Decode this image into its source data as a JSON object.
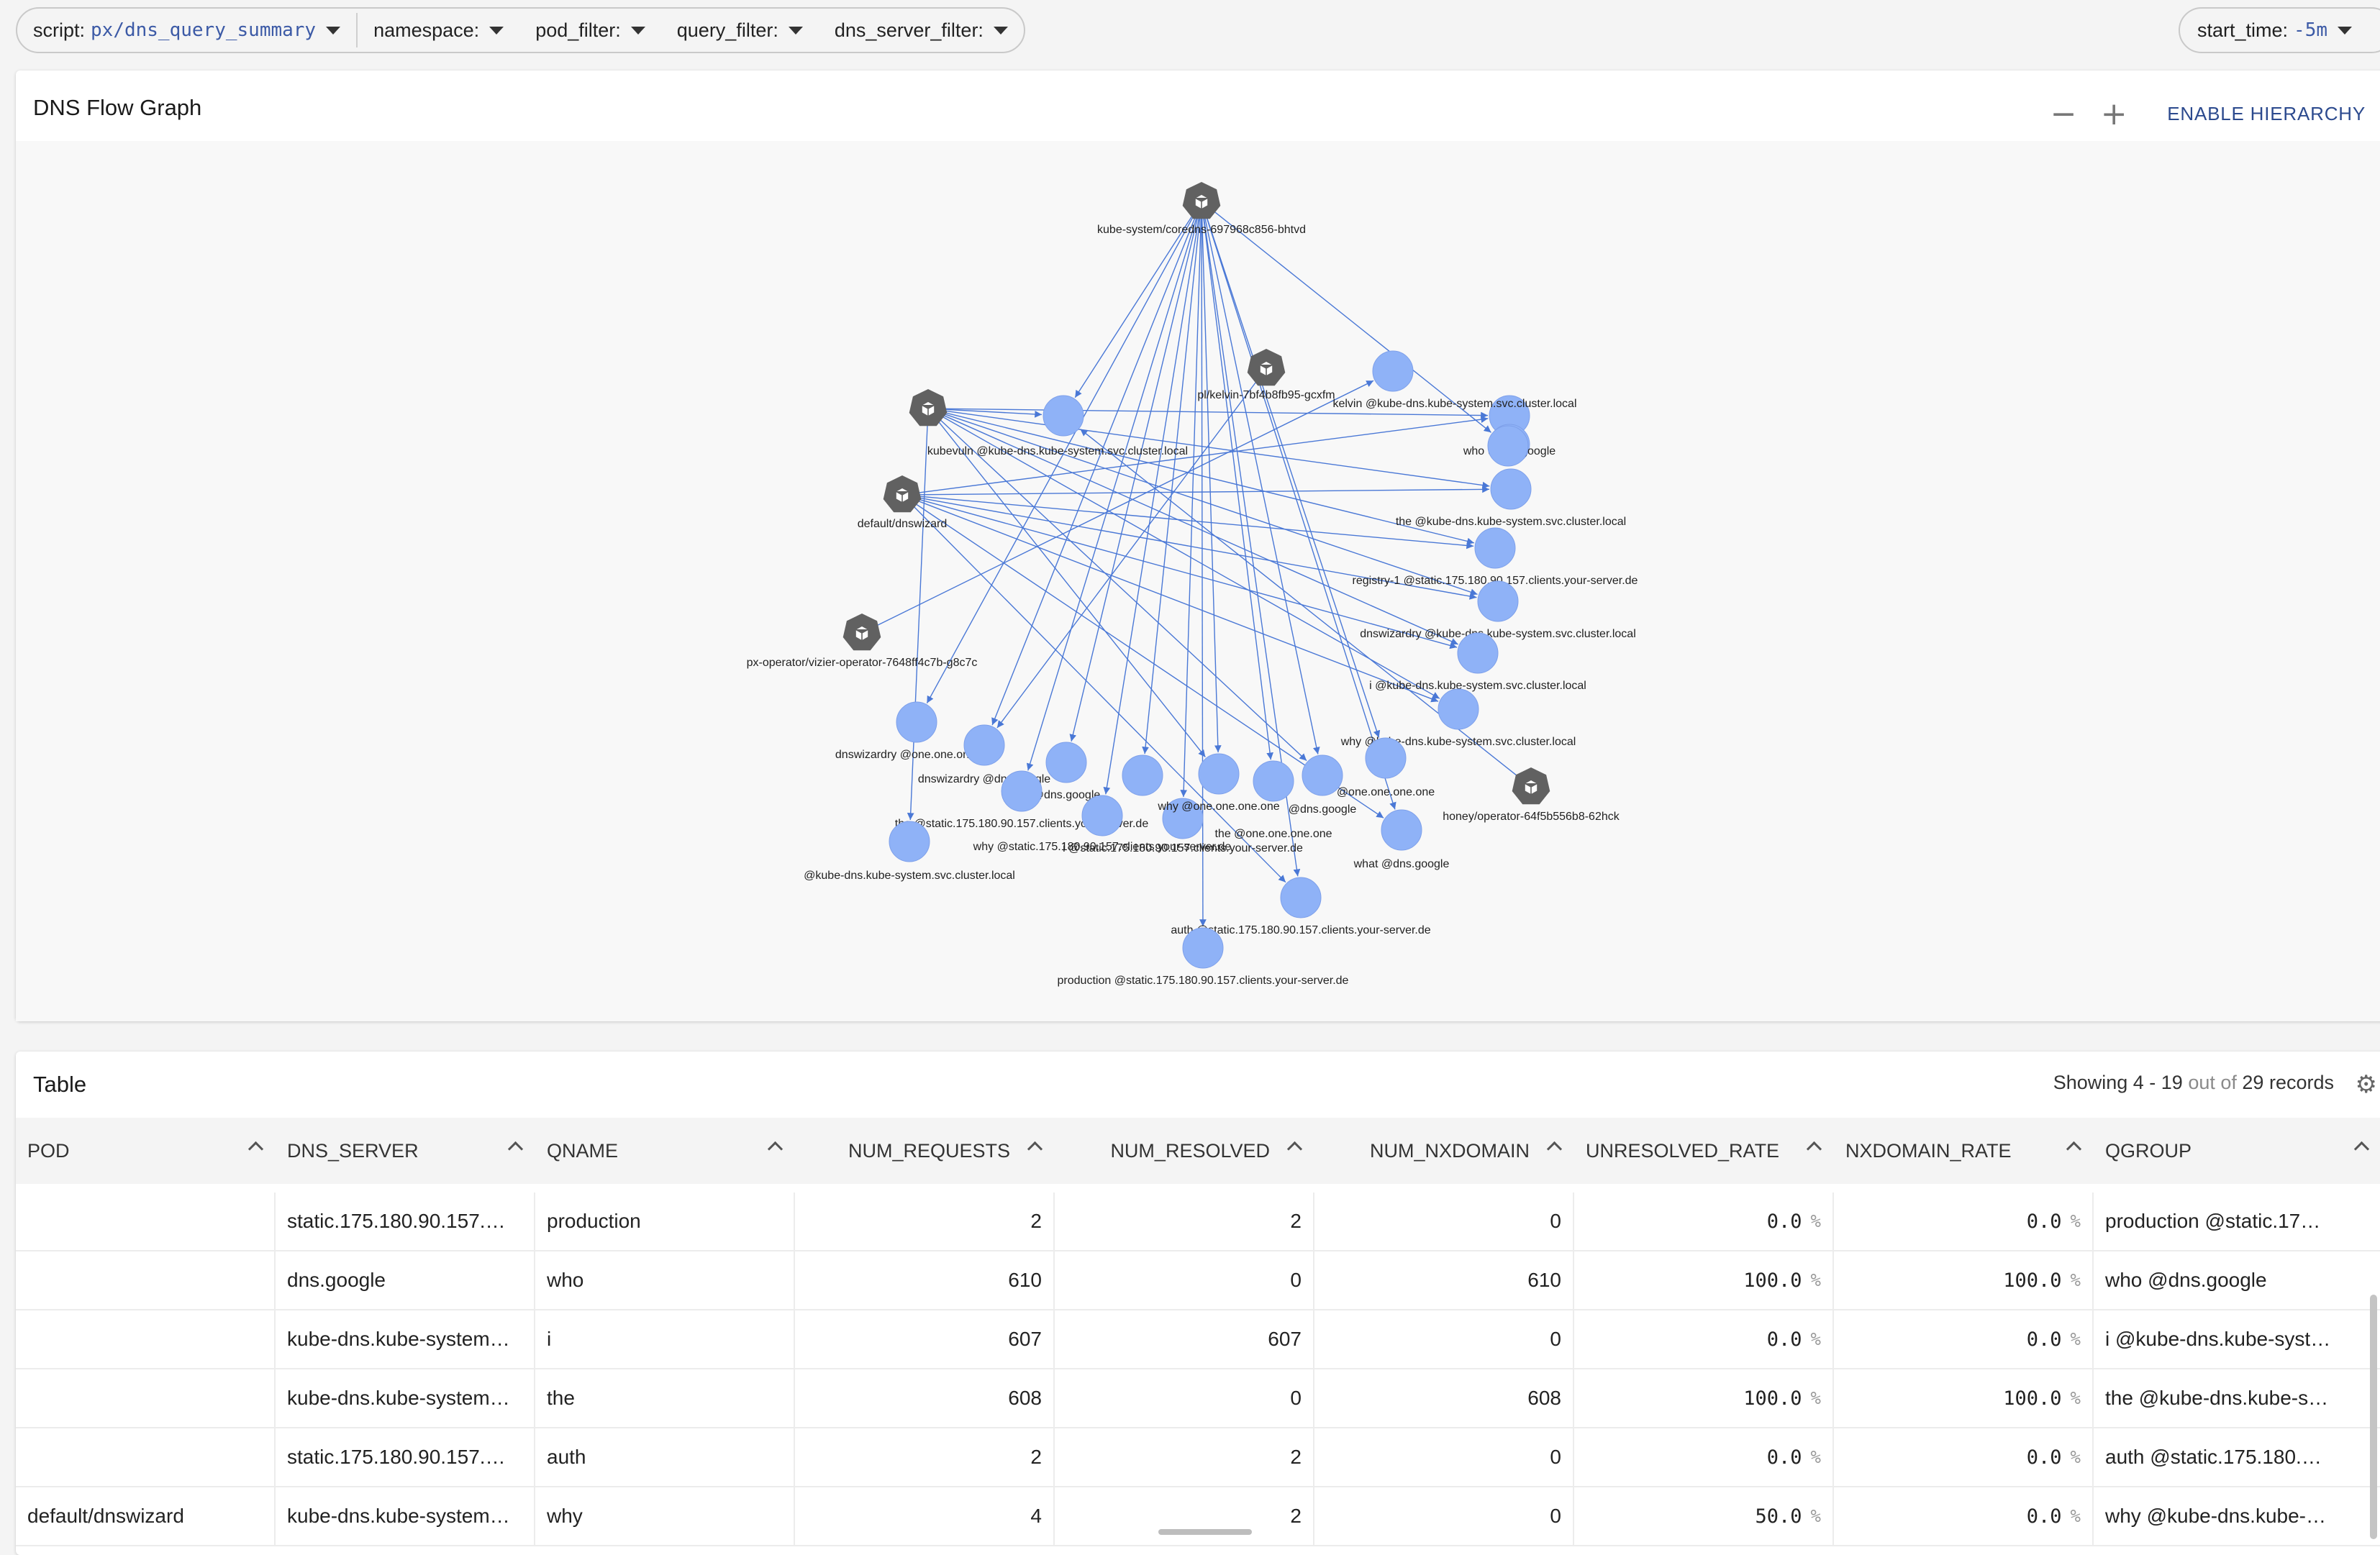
{
  "filters": [
    {
      "key": "script:",
      "value": "px/dns_query_summary"
    },
    {
      "key": "namespace:",
      "value": ""
    },
    {
      "key": "pod_filter:",
      "value": ""
    },
    {
      "key": "query_filter:",
      "value": ""
    },
    {
      "key": "dns_server_filter:",
      "value": ""
    }
  ],
  "time": {
    "key": "start_time:",
    "value": "-5m"
  },
  "graph": {
    "title": "DNS Flow Graph",
    "zoom_out": "−",
    "zoom_in": "+",
    "hierarchy_button": "ENABLE HIERARCHY",
    "colors": {
      "pod": "#616161",
      "service": "#8fb2f7",
      "edge": "#4a78d6"
    },
    "nodes": [
      {
        "id": "coredns",
        "kind": "pod",
        "label": "kube-system/coredns-697968c856-bhtvd"
      },
      {
        "id": "kelvin",
        "kind": "pod",
        "label": "pl/kelvin-7bf4b8fb95-gcxfm"
      },
      {
        "id": "kubevuln",
        "kind": "pod",
        "label": ""
      },
      {
        "id": "dnswizard",
        "kind": "pod",
        "label": "default/dnswizard"
      },
      {
        "id": "vizierop",
        "kind": "pod",
        "label": "px-operator/vizier-operator-7648ff4c7b-g8c7c"
      },
      {
        "id": "honey",
        "kind": "pod",
        "label": "honey/operator-64f5b556b8-62hck"
      },
      {
        "id": "s_top",
        "kind": "service",
        "label": ""
      },
      {
        "id": "s_kubevuln",
        "kind": "service",
        "label": "kubevuln @kube-dns.kube-system.svc.cluster.local"
      },
      {
        "id": "s_kelvin",
        "kind": "service",
        "label": "kelvin @kube-dns.kube-system.svc.cluster.local"
      },
      {
        "id": "s_who",
        "kind": "service",
        "label": "who @dns.google"
      },
      {
        "id": "s_the_kd",
        "kind": "service",
        "label": "the @kube-dns.kube-system.svc.cluster.local"
      },
      {
        "id": "s_registry",
        "kind": "service",
        "label": "registry-1 @static.175.180.90.157.clients.your-server.de"
      },
      {
        "id": "s_dnswiz_kd",
        "kind": "service",
        "label": "dnswizardry @kube-dns.kube-system.svc.cluster.local"
      },
      {
        "id": "s_i_kd",
        "kind": "service",
        "label": "i @kube-dns.kube-system.svc.cluster.local"
      },
      {
        "id": "s_why_kd",
        "kind": "service",
        "label": "why @kube-dns.kube-system.svc.cluster.local"
      },
      {
        "id": "s_dnswiz_one",
        "kind": "service",
        "label": "dnswizardry @one.one.one.one"
      },
      {
        "id": "s_dnswiz_dg",
        "kind": "service",
        "label": "dnswizardry @dns.google"
      },
      {
        "id": "s_at_dg",
        "kind": "service",
        "label": "@dns.google"
      },
      {
        "id": "s_at_one",
        "kind": "service",
        "label": "@one.one.one.one"
      },
      {
        "id": "s_the_static",
        "kind": "service",
        "label": "the @static.175.180.90.157.clients.your-server.de"
      },
      {
        "id": "s_at_kd",
        "kind": "service",
        "label": "@kube-dns.kube-system.svc.cluster.local"
      },
      {
        "id": "s_why_static",
        "kind": "service",
        "label": "why @static.175.180.90.157.clients.your-server.de"
      },
      {
        "id": "s_i_static",
        "kind": "service",
        "label": "i @static.175.180.90.157.clients.your-server.de"
      },
      {
        "id": "s_why_one",
        "kind": "service",
        "label": "why @one.one.one.one"
      },
      {
        "id": "s_the_one",
        "kind": "service",
        "label": "the @one.one.one.one"
      },
      {
        "id": "s_at_dg2",
        "kind": "service",
        "label": "@dns.google"
      },
      {
        "id": "s_what",
        "kind": "service",
        "label": "what @dns.google"
      },
      {
        "id": "s_auth",
        "kind": "service",
        "label": "auth @static.175.180.90.157.clients.your-server.de"
      },
      {
        "id": "s_production",
        "kind": "service",
        "label": "production @static.175.180.90.157.clients.your-server.de"
      },
      {
        "id": "s_one_mid",
        "kind": "service",
        "label": ""
      },
      {
        "id": "s_who2",
        "kind": "service",
        "label": ""
      }
    ],
    "edges": [
      [
        "coredns",
        "s_kubevuln"
      ],
      [
        "coredns",
        "s_dnswiz_one"
      ],
      [
        "coredns",
        "s_dnswiz_dg"
      ],
      [
        "coredns",
        "s_at_dg"
      ],
      [
        "coredns",
        "s_at_one"
      ],
      [
        "coredns",
        "s_the_static"
      ],
      [
        "coredns",
        "s_why_static"
      ],
      [
        "coredns",
        "s_one_mid"
      ],
      [
        "coredns",
        "s_why_one"
      ],
      [
        "coredns",
        "s_the_one"
      ],
      [
        "coredns",
        "s_at_dg2"
      ],
      [
        "coredns",
        "s_i_static"
      ],
      [
        "coredns",
        "s_auth"
      ],
      [
        "coredns",
        "s_production"
      ],
      [
        "coredns",
        "s_what"
      ],
      [
        "coredns",
        "s_who2"
      ],
      [
        "kubevuln",
        "s_kubevuln"
      ],
      [
        "kubevuln",
        "s_kelvin"
      ],
      [
        "kubevuln",
        "s_the_kd"
      ],
      [
        "kubevuln",
        "s_registry"
      ],
      [
        "kubevuln",
        "s_dnswiz_kd"
      ],
      [
        "kubevuln",
        "s_i_kd"
      ],
      [
        "kubevuln",
        "s_why_kd"
      ],
      [
        "kubevuln",
        "s_at_dg2"
      ],
      [
        "kubevuln",
        "s_why_one"
      ],
      [
        "kubevuln",
        "s_at_kd"
      ],
      [
        "dnswizard",
        "s_kelvin"
      ],
      [
        "dnswizard",
        "s_the_kd"
      ],
      [
        "dnswizard",
        "s_registry"
      ],
      [
        "dnswizard",
        "s_dnswiz_kd"
      ],
      [
        "dnswizard",
        "s_i_kd"
      ],
      [
        "dnswizard",
        "s_why_kd"
      ],
      [
        "dnswizard",
        "s_what"
      ],
      [
        "dnswizard",
        "s_auth"
      ],
      [
        "vizierop",
        "s_top"
      ],
      [
        "honey",
        "s_kubevuln"
      ],
      [
        "kelvin",
        "s_dnswiz_dg"
      ]
    ]
  },
  "table": {
    "title": "Table",
    "status": {
      "prefix": "Showing 4 - 19",
      "mid": "out of",
      "count": "29",
      "suffix": "records"
    },
    "gear_icon": "⚙",
    "columns": [
      "POD",
      "DNS_SERVER",
      "QNAME",
      "NUM_REQUESTS",
      "NUM_RESOLVED",
      "NUM_NXDOMAIN",
      "UNRESOLVED_RATE",
      "NXDOMAIN_RATE",
      "QGROUP"
    ],
    "rows": [
      [
        "",
        "static.175.180.90.157.…",
        "production",
        "2",
        "2",
        "0",
        "0.0",
        "0.0",
        "production @static.17…"
      ],
      [
        "",
        "dns.google",
        "who",
        "610",
        "0",
        "610",
        "100.0",
        "100.0",
        "who @dns.google"
      ],
      [
        "",
        "kube-dns.kube-system…",
        "i",
        "607",
        "607",
        "0",
        "0.0",
        "0.0",
        "i @kube-dns.kube-syst…"
      ],
      [
        "",
        "kube-dns.kube-system…",
        "the",
        "608",
        "0",
        "608",
        "100.0",
        "100.0",
        "the @kube-dns.kube-s…"
      ],
      [
        "",
        "static.175.180.90.157.…",
        "auth",
        "2",
        "2",
        "0",
        "0.0",
        "0.0",
        "auth @static.175.180.…"
      ],
      [
        "default/dnswizard",
        "kube-dns.kube-system…",
        "why",
        "4",
        "2",
        "0",
        "50.0",
        "0.0",
        "why @kube-dns.kube-…"
      ]
    ],
    "pct_unit": "%"
  }
}
